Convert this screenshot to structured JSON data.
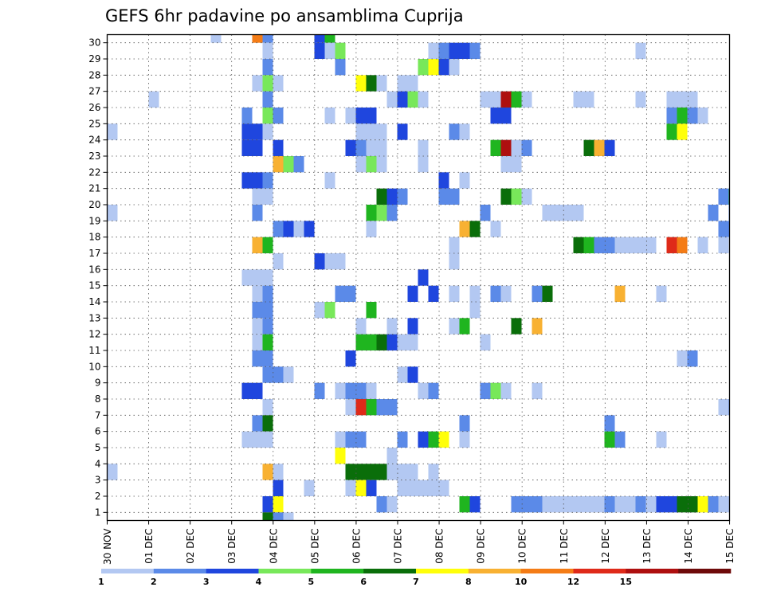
{
  "chart_data": {
    "type": "heatmap",
    "title": "GEFS 6hr padavine po ansamblima Cuprija",
    "xlabel": "",
    "ylabel": "",
    "x_tick_labels": [
      "30 NOV",
      "01 DEC",
      "02 DEC",
      "03 DEC",
      "04 DEC",
      "05 DEC",
      "06 DEC",
      "07 DEC",
      "08 DEC",
      "09 DEC",
      "10 DEC",
      "11 DEC",
      "12 DEC",
      "13 DEC",
      "14 DEC",
      "15 DEC"
    ],
    "y_tick_labels": [
      "1",
      "2",
      "3",
      "4",
      "5",
      "6",
      "7",
      "8",
      "9",
      "10",
      "11",
      "12",
      "13",
      "14",
      "15",
      "16",
      "17",
      "18",
      "19",
      "20",
      "21",
      "22",
      "23",
      "24",
      "25",
      "26",
      "27",
      "28",
      "29",
      "30"
    ],
    "xlim": [
      0,
      60
    ],
    "ylim": [
      0,
      30
    ],
    "grid": true,
    "colorbar": {
      "levels": [
        "1",
        "2",
        "3",
        "4",
        "5",
        "6",
        "7",
        "8",
        "10",
        "12",
        "15",
        "20"
      ],
      "colors": [
        "#b3c8f2",
        "#5b8ae8",
        "#1f46de",
        "#78e85a",
        "#1fb51f",
        "#0a6e0a",
        "#ffff0a",
        "#f8b132",
        "#f47c16",
        "#df2a19",
        "#ae0f0f",
        "#6e0a0a"
      ]
    },
    "cells": [
      [
        0,
        24,
        1
      ],
      [
        0,
        19,
        1
      ],
      [
        0,
        3,
        1
      ],
      [
        4,
        26,
        1
      ],
      [
        10,
        30,
        1
      ],
      [
        13,
        25,
        2
      ],
      [
        13,
        24,
        3
      ],
      [
        13,
        23,
        3
      ],
      [
        13,
        21,
        3
      ],
      [
        13,
        15,
        1
      ],
      [
        13,
        8,
        3
      ],
      [
        13,
        5,
        1
      ],
      [
        14,
        30,
        9
      ],
      [
        14,
        27,
        1
      ],
      [
        14,
        24,
        3
      ],
      [
        14,
        23,
        3
      ],
      [
        14,
        21,
        3
      ],
      [
        14,
        20,
        1
      ],
      [
        14,
        19,
        2
      ],
      [
        14,
        17,
        8
      ],
      [
        14,
        15,
        1
      ],
      [
        14,
        14,
        1
      ],
      [
        14,
        13,
        2
      ],
      [
        14,
        12,
        1
      ],
      [
        14,
        11,
        1
      ],
      [
        14,
        10,
        2
      ],
      [
        14,
        8,
        3
      ],
      [
        14,
        6,
        2
      ],
      [
        14,
        5,
        1
      ],
      [
        15,
        30,
        2
      ],
      [
        15,
        29,
        1
      ],
      [
        15,
        28,
        2
      ],
      [
        15,
        27,
        4
      ],
      [
        15,
        26,
        2
      ],
      [
        15,
        25,
        4
      ],
      [
        15,
        24,
        1
      ],
      [
        15,
        21,
        2
      ],
      [
        15,
        20,
        1
      ],
      [
        15,
        17,
        5
      ],
      [
        15,
        15,
        1
      ],
      [
        15,
        14,
        2
      ],
      [
        15,
        13,
        2
      ],
      [
        15,
        12,
        2
      ],
      [
        15,
        11,
        5
      ],
      [
        15,
        10,
        2
      ],
      [
        15,
        9,
        2
      ],
      [
        15,
        7,
        1
      ],
      [
        15,
        6,
        6
      ],
      [
        15,
        5,
        1
      ],
      [
        15,
        3,
        8
      ],
      [
        15,
        1,
        3
      ],
      [
        15,
        0,
        6
      ],
      [
        16,
        27,
        1
      ],
      [
        16,
        25,
        2
      ],
      [
        16,
        23,
        3
      ],
      [
        16,
        22,
        8
      ],
      [
        16,
        18,
        2
      ],
      [
        16,
        16,
        1
      ],
      [
        16,
        9,
        2
      ],
      [
        16,
        3,
        1
      ],
      [
        16,
        2,
        3
      ],
      [
        16,
        1,
        7
      ],
      [
        16,
        0,
        2
      ],
      [
        17,
        22,
        4
      ],
      [
        17,
        18,
        3
      ],
      [
        17,
        9,
        1
      ],
      [
        17,
        0,
        1
      ],
      [
        18,
        22,
        2
      ],
      [
        18,
        18,
        1
      ],
      [
        19,
        18,
        3
      ],
      [
        19,
        2,
        1
      ],
      [
        20,
        30,
        3
      ],
      [
        20,
        29,
        3
      ],
      [
        20,
        16,
        3
      ],
      [
        20,
        13,
        1
      ],
      [
        20,
        8,
        2
      ],
      [
        21,
        30,
        5
      ],
      [
        21,
        29,
        1
      ],
      [
        21,
        25,
        1
      ],
      [
        21,
        21,
        1
      ],
      [
        21,
        16,
        1
      ],
      [
        21,
        13,
        4
      ],
      [
        22,
        29,
        4
      ],
      [
        22,
        28,
        2
      ],
      [
        22,
        16,
        1
      ],
      [
        22,
        14,
        2
      ],
      [
        22,
        8,
        1
      ],
      [
        22,
        5,
        1
      ],
      [
        22,
        4,
        7
      ],
      [
        23,
        25,
        1
      ],
      [
        23,
        23,
        3
      ],
      [
        23,
        14,
        2
      ],
      [
        23,
        10,
        3
      ],
      [
        23,
        8,
        2
      ],
      [
        23,
        7,
        1
      ],
      [
        23,
        5,
        2
      ],
      [
        23,
        3,
        6
      ],
      [
        23,
        2,
        1
      ],
      [
        24,
        27,
        7
      ],
      [
        24,
        25,
        3
      ],
      [
        24,
        24,
        1
      ],
      [
        24,
        23,
        2
      ],
      [
        24,
        22,
        1
      ],
      [
        24,
        12,
        1
      ],
      [
        24,
        11,
        5
      ],
      [
        24,
        8,
        2
      ],
      [
        24,
        7,
        10
      ],
      [
        24,
        5,
        2
      ],
      [
        24,
        3,
        6
      ],
      [
        24,
        2,
        7
      ],
      [
        25,
        27,
        6
      ],
      [
        25,
        25,
        3
      ],
      [
        25,
        24,
        1
      ],
      [
        25,
        23,
        1
      ],
      [
        25,
        22,
        4
      ],
      [
        25,
        19,
        5
      ],
      [
        25,
        18,
        1
      ],
      [
        25,
        13,
        5
      ],
      [
        25,
        11,
        5
      ],
      [
        25,
        8,
        1
      ],
      [
        25,
        7,
        5
      ],
      [
        25,
        3,
        6
      ],
      [
        25,
        2,
        3
      ],
      [
        26,
        27,
        1
      ],
      [
        26,
        24,
        1
      ],
      [
        26,
        23,
        1
      ],
      [
        26,
        22,
        1
      ],
      [
        26,
        20,
        6
      ],
      [
        26,
        19,
        4
      ],
      [
        26,
        11,
        6
      ],
      [
        26,
        7,
        2
      ],
      [
        26,
        3,
        6
      ],
      [
        26,
        1,
        2
      ],
      [
        27,
        26,
        1
      ],
      [
        27,
        20,
        3
      ],
      [
        27,
        19,
        2
      ],
      [
        27,
        12,
        1
      ],
      [
        27,
        11,
        3
      ],
      [
        27,
        7,
        2
      ],
      [
        27,
        4,
        1
      ],
      [
        27,
        3,
        1
      ],
      [
        27,
        1,
        1
      ],
      [
        28,
        27,
        1
      ],
      [
        28,
        26,
        3
      ],
      [
        28,
        24,
        3
      ],
      [
        28,
        20,
        2
      ],
      [
        28,
        11,
        1
      ],
      [
        28,
        9,
        1
      ],
      [
        28,
        5,
        2
      ],
      [
        28,
        3,
        1
      ],
      [
        28,
        2,
        1
      ],
      [
        29,
        27,
        1
      ],
      [
        29,
        26,
        4
      ],
      [
        29,
        14,
        3
      ],
      [
        29,
        12,
        3
      ],
      [
        29,
        11,
        1
      ],
      [
        29,
        9,
        3
      ],
      [
        29,
        3,
        1
      ],
      [
        29,
        2,
        1
      ],
      [
        30,
        28,
        4
      ],
      [
        30,
        26,
        1
      ],
      [
        30,
        23,
        1
      ],
      [
        30,
        22,
        1
      ],
      [
        30,
        15,
        3
      ],
      [
        30,
        8,
        1
      ],
      [
        30,
        5,
        3
      ],
      [
        30,
        2,
        1
      ],
      [
        31,
        29,
        1
      ],
      [
        31,
        28,
        7
      ],
      [
        31,
        14,
        3
      ],
      [
        31,
        8,
        2
      ],
      [
        31,
        5,
        5
      ],
      [
        31,
        3,
        1
      ],
      [
        31,
        2,
        1
      ],
      [
        32,
        29,
        2
      ],
      [
        32,
        28,
        3
      ],
      [
        32,
        21,
        3
      ],
      [
        32,
        20,
        2
      ],
      [
        32,
        5,
        7
      ],
      [
        32,
        2,
        1
      ],
      [
        33,
        29,
        3
      ],
      [
        33,
        28,
        1
      ],
      [
        33,
        24,
        2
      ],
      [
        33,
        20,
        2
      ],
      [
        33,
        17,
        1
      ],
      [
        33,
        16,
        1
      ],
      [
        33,
        14,
        1
      ],
      [
        33,
        12,
        1
      ],
      [
        34,
        29,
        3
      ],
      [
        34,
        24,
        1
      ],
      [
        34,
        21,
        1
      ],
      [
        34,
        18,
        8
      ],
      [
        34,
        12,
        5
      ],
      [
        34,
        6,
        2
      ],
      [
        34,
        5,
        1
      ],
      [
        34,
        1,
        5
      ],
      [
        35,
        29,
        2
      ],
      [
        35,
        18,
        6
      ],
      [
        35,
        14,
        1
      ],
      [
        35,
        13,
        1
      ],
      [
        35,
        1,
        3
      ],
      [
        36,
        26,
        1
      ],
      [
        36,
        19,
        2
      ],
      [
        36,
        11,
        1
      ],
      [
        36,
        8,
        2
      ],
      [
        37,
        26,
        1
      ],
      [
        37,
        25,
        3
      ],
      [
        37,
        23,
        5
      ],
      [
        37,
        18,
        1
      ],
      [
        37,
        14,
        2
      ],
      [
        37,
        8,
        4
      ],
      [
        38,
        26,
        11
      ],
      [
        38,
        25,
        3
      ],
      [
        38,
        23,
        11
      ],
      [
        38,
        22,
        1
      ],
      [
        38,
        20,
        6
      ],
      [
        38,
        14,
        1
      ],
      [
        38,
        8,
        1
      ],
      [
        39,
        26,
        5
      ],
      [
        39,
        23,
        1
      ],
      [
        39,
        22,
        1
      ],
      [
        39,
        20,
        4
      ],
      [
        39,
        12,
        6
      ],
      [
        39,
        1,
        2
      ],
      [
        40,
        26,
        1
      ],
      [
        40,
        23,
        2
      ],
      [
        40,
        20,
        1
      ],
      [
        40,
        1,
        2
      ],
      [
        41,
        14,
        2
      ],
      [
        41,
        12,
        8
      ],
      [
        41,
        8,
        1
      ],
      [
        41,
        1,
        2
      ],
      [
        42,
        19,
        1
      ],
      [
        42,
        14,
        6
      ],
      [
        42,
        1,
        1
      ],
      [
        43,
        19,
        1
      ],
      [
        43,
        1,
        1
      ],
      [
        44,
        19,
        1
      ],
      [
        44,
        1,
        1
      ],
      [
        45,
        26,
        1
      ],
      [
        45,
        19,
        1
      ],
      [
        45,
        17,
        6
      ],
      [
        45,
        1,
        1
      ],
      [
        46,
        26,
        1
      ],
      [
        46,
        23,
        6
      ],
      [
        46,
        17,
        5
      ],
      [
        46,
        1,
        1
      ],
      [
        47,
        23,
        8
      ],
      [
        47,
        17,
        2
      ],
      [
        47,
        1,
        1
      ],
      [
        48,
        23,
        3
      ],
      [
        48,
        17,
        2
      ],
      [
        48,
        6,
        2
      ],
      [
        48,
        5,
        5
      ],
      [
        48,
        1,
        2
      ],
      [
        49,
        17,
        1
      ],
      [
        49,
        14,
        8
      ],
      [
        49,
        5,
        2
      ],
      [
        49,
        1,
        1
      ],
      [
        50,
        17,
        1
      ],
      [
        50,
        1,
        1
      ],
      [
        51,
        29,
        1
      ],
      [
        51,
        26,
        1
      ],
      [
        51,
        17,
        1
      ],
      [
        51,
        1,
        2
      ],
      [
        52,
        17,
        1
      ],
      [
        52,
        1,
        1
      ],
      [
        53,
        14,
        1
      ],
      [
        53,
        5,
        1
      ],
      [
        53,
        1,
        3
      ],
      [
        54,
        26,
        1
      ],
      [
        54,
        25,
        2
      ],
      [
        54,
        24,
        5
      ],
      [
        54,
        17,
        10
      ],
      [
        54,
        1,
        3
      ],
      [
        55,
        26,
        1
      ],
      [
        55,
        25,
        5
      ],
      [
        55,
        24,
        7
      ],
      [
        55,
        17,
        9
      ],
      [
        55,
        10,
        1
      ],
      [
        55,
        1,
        6
      ],
      [
        56,
        26,
        1
      ],
      [
        56,
        25,
        2
      ],
      [
        56,
        10,
        2
      ],
      [
        56,
        1,
        6
      ],
      [
        57,
        25,
        1
      ],
      [
        57,
        17,
        1
      ],
      [
        57,
        1,
        7
      ],
      [
        58,
        19,
        2
      ],
      [
        58,
        1,
        2
      ],
      [
        59,
        20,
        2
      ],
      [
        59,
        18,
        2
      ],
      [
        59,
        17,
        1
      ],
      [
        59,
        7,
        1
      ],
      [
        59,
        1,
        1
      ],
      [
        60,
        20,
        5
      ],
      [
        60,
        19,
        2
      ],
      [
        60,
        18,
        2
      ],
      [
        60,
        7,
        2
      ],
      [
        60,
        1,
        1
      ],
      [
        61,
        18,
        6
      ],
      [
        61,
        7,
        2
      ],
      [
        62,
        18,
        3
      ],
      [
        62,
        16,
        1
      ],
      [
        62,
        7,
        1
      ],
      [
        63,
        7,
        1
      ],
      [
        64,
        21,
        5
      ],
      [
        65,
        21,
        2
      ],
      [
        66,
        29,
        1
      ],
      [
        67,
        29,
        1
      ],
      [
        67,
        16,
        3
      ],
      [
        67,
        5,
        1
      ],
      [
        67,
        2,
        3
      ],
      [
        67,
        0,
        1
      ],
      [
        68,
        29,
        1
      ],
      [
        69,
        29,
        2
      ],
      [
        69,
        24,
        5
      ],
      [
        69,
        16,
        1
      ],
      [
        70,
        29,
        2
      ],
      [
        70,
        1,
        1
      ],
      [
        71,
        16,
        11
      ]
    ]
  }
}
